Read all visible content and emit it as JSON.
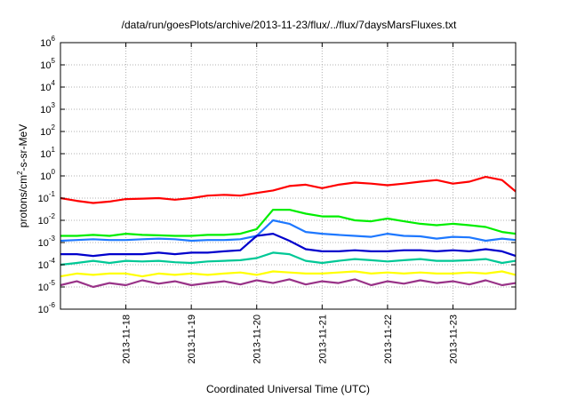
{
  "chart_data": {
    "type": "line",
    "title": "/data/run/goesPlots/archive/2013-11-23/flux/../flux/7daysMarsFluxes.txt",
    "xlabel": "Coordinated Universal Time (UTC)",
    "ylabel": "protons/cm²-s-sr-MeV",
    "yscale": "log",
    "ylim": [
      1e-06,
      1000000.0
    ],
    "xlim": [
      "2013-11-17T00:00",
      "2013-11-23T23:00"
    ],
    "grid": true,
    "yticks": [
      {
        "base": "10",
        "exp": "-6",
        "value": 1e-06
      },
      {
        "base": "10",
        "exp": "-5",
        "value": 1e-05
      },
      {
        "base": "10",
        "exp": "-4",
        "value": 0.0001
      },
      {
        "base": "10",
        "exp": "-3",
        "value": 0.001
      },
      {
        "base": "10",
        "exp": "-2",
        "value": 0.01
      },
      {
        "base": "10",
        "exp": "-1",
        "value": 0.1
      },
      {
        "base": "10",
        "exp": "0",
        "value": 1
      },
      {
        "base": "10",
        "exp": "1",
        "value": 10.0
      },
      {
        "base": "10",
        "exp": "2",
        "value": 100.0
      },
      {
        "base": "10",
        "exp": "3",
        "value": 1000.0
      },
      {
        "base": "10",
        "exp": "4",
        "value": 10000.0
      },
      {
        "base": "10",
        "exp": "5",
        "value": 100000.0
      },
      {
        "base": "10",
        "exp": "6",
        "value": 1000000.0
      }
    ],
    "xticks": [
      "2013-11-18",
      "2013-11-19",
      "2013-11-20",
      "2013-11-21",
      "2013-11-22",
      "2013-11-23"
    ],
    "x": [
      "2013-11-17T00:00",
      "2013-11-17T06:00",
      "2013-11-17T12:00",
      "2013-11-17T18:00",
      "2013-11-18T00:00",
      "2013-11-18T06:00",
      "2013-11-18T12:00",
      "2013-11-18T18:00",
      "2013-11-19T00:00",
      "2013-11-19T06:00",
      "2013-11-19T12:00",
      "2013-11-19T18:00",
      "2013-11-20T00:00",
      "2013-11-20T06:00",
      "2013-11-20T12:00",
      "2013-11-20T18:00",
      "2013-11-21T00:00",
      "2013-11-21T06:00",
      "2013-11-21T12:00",
      "2013-11-21T18:00",
      "2013-11-22T00:00",
      "2013-11-22T06:00",
      "2013-11-22T12:00",
      "2013-11-22T18:00",
      "2013-11-23T00:00",
      "2013-11-23T06:00",
      "2013-11-23T12:00",
      "2013-11-23T18:00",
      "2013-11-23T23:00"
    ],
    "series": [
      {
        "color": "#ff0000",
        "values": [
          0.1,
          0.075,
          0.06,
          0.07,
          0.09,
          0.095,
          0.1,
          0.085,
          0.1,
          0.13,
          0.14,
          0.13,
          0.17,
          0.22,
          0.35,
          0.4,
          0.28,
          0.4,
          0.5,
          0.45,
          0.38,
          0.45,
          0.55,
          0.65,
          0.45,
          0.55,
          0.9,
          0.65,
          0.2
        ]
      },
      {
        "color": "#00ee00",
        "values": [
          0.002,
          0.002,
          0.0022,
          0.002,
          0.0025,
          0.0022,
          0.0021,
          0.002,
          0.002,
          0.0022,
          0.0022,
          0.0025,
          0.004,
          0.03,
          0.03,
          0.02,
          0.015,
          0.015,
          0.01,
          0.009,
          0.012,
          0.009,
          0.007,
          0.006,
          0.007,
          0.006,
          0.005,
          0.003,
          0.0025
        ]
      },
      {
        "color": "#1e78ff",
        "values": [
          0.0012,
          0.0013,
          0.0014,
          0.0013,
          0.0013,
          0.0014,
          0.0015,
          0.0014,
          0.0012,
          0.0013,
          0.0013,
          0.0014,
          0.002,
          0.01,
          0.007,
          0.003,
          0.0025,
          0.0022,
          0.002,
          0.0018,
          0.0025,
          0.002,
          0.0019,
          0.0015,
          0.0018,
          0.0017,
          0.0012,
          0.0015,
          0.0013
        ]
      },
      {
        "color": "#0000cc",
        "values": [
          0.0003,
          0.0003,
          0.00025,
          0.0003,
          0.0003,
          0.0003,
          0.00035,
          0.0003,
          0.00035,
          0.00035,
          0.0004,
          0.00045,
          0.002,
          0.0025,
          0.0012,
          0.0005,
          0.0004,
          0.0004,
          0.00045,
          0.0004,
          0.0004,
          0.00045,
          0.00045,
          0.0004,
          0.00045,
          0.0004,
          0.0005,
          0.0004,
          0.00025
        ]
      },
      {
        "color": "#00c896",
        "values": [
          0.0001,
          0.00012,
          0.00015,
          0.00012,
          0.00015,
          0.00014,
          0.00015,
          0.00013,
          0.00012,
          0.00014,
          0.00015,
          0.00016,
          0.0002,
          0.00035,
          0.0003,
          0.00015,
          0.00012,
          0.00015,
          0.00018,
          0.00016,
          0.00014,
          0.00016,
          0.00018,
          0.00015,
          0.00015,
          0.00016,
          0.00018,
          0.00012,
          0.00015
        ]
      },
      {
        "color": "#ffff00",
        "values": [
          3e-05,
          4e-05,
          3.5e-05,
          4e-05,
          4e-05,
          3e-05,
          4e-05,
          3.5e-05,
          4e-05,
          3.5e-05,
          4e-05,
          4.5e-05,
          3.5e-05,
          5e-05,
          4.5e-05,
          4e-05,
          4e-05,
          4.5e-05,
          5e-05,
          4e-05,
          4.5e-05,
          4e-05,
          4.5e-05,
          4e-05,
          4e-05,
          4.5e-05,
          4e-05,
          5e-05,
          3.5e-05
        ]
      },
      {
        "color": "#993388",
        "values": [
          1.2e-05,
          1.8e-05,
          1e-05,
          1.5e-05,
          1.2e-05,
          2e-05,
          1.4e-05,
          1.8e-05,
          1.2e-05,
          1.5e-05,
          1.8e-05,
          1.3e-05,
          2e-05,
          1.5e-05,
          2.2e-05,
          1.3e-05,
          1.8e-05,
          1.5e-05,
          2.2e-05,
          1.2e-05,
          1.8e-05,
          1.4e-05,
          2e-05,
          1.5e-05,
          1.8e-05,
          1.3e-05,
          2e-05,
          1.2e-05,
          1.5e-05
        ]
      }
    ]
  }
}
